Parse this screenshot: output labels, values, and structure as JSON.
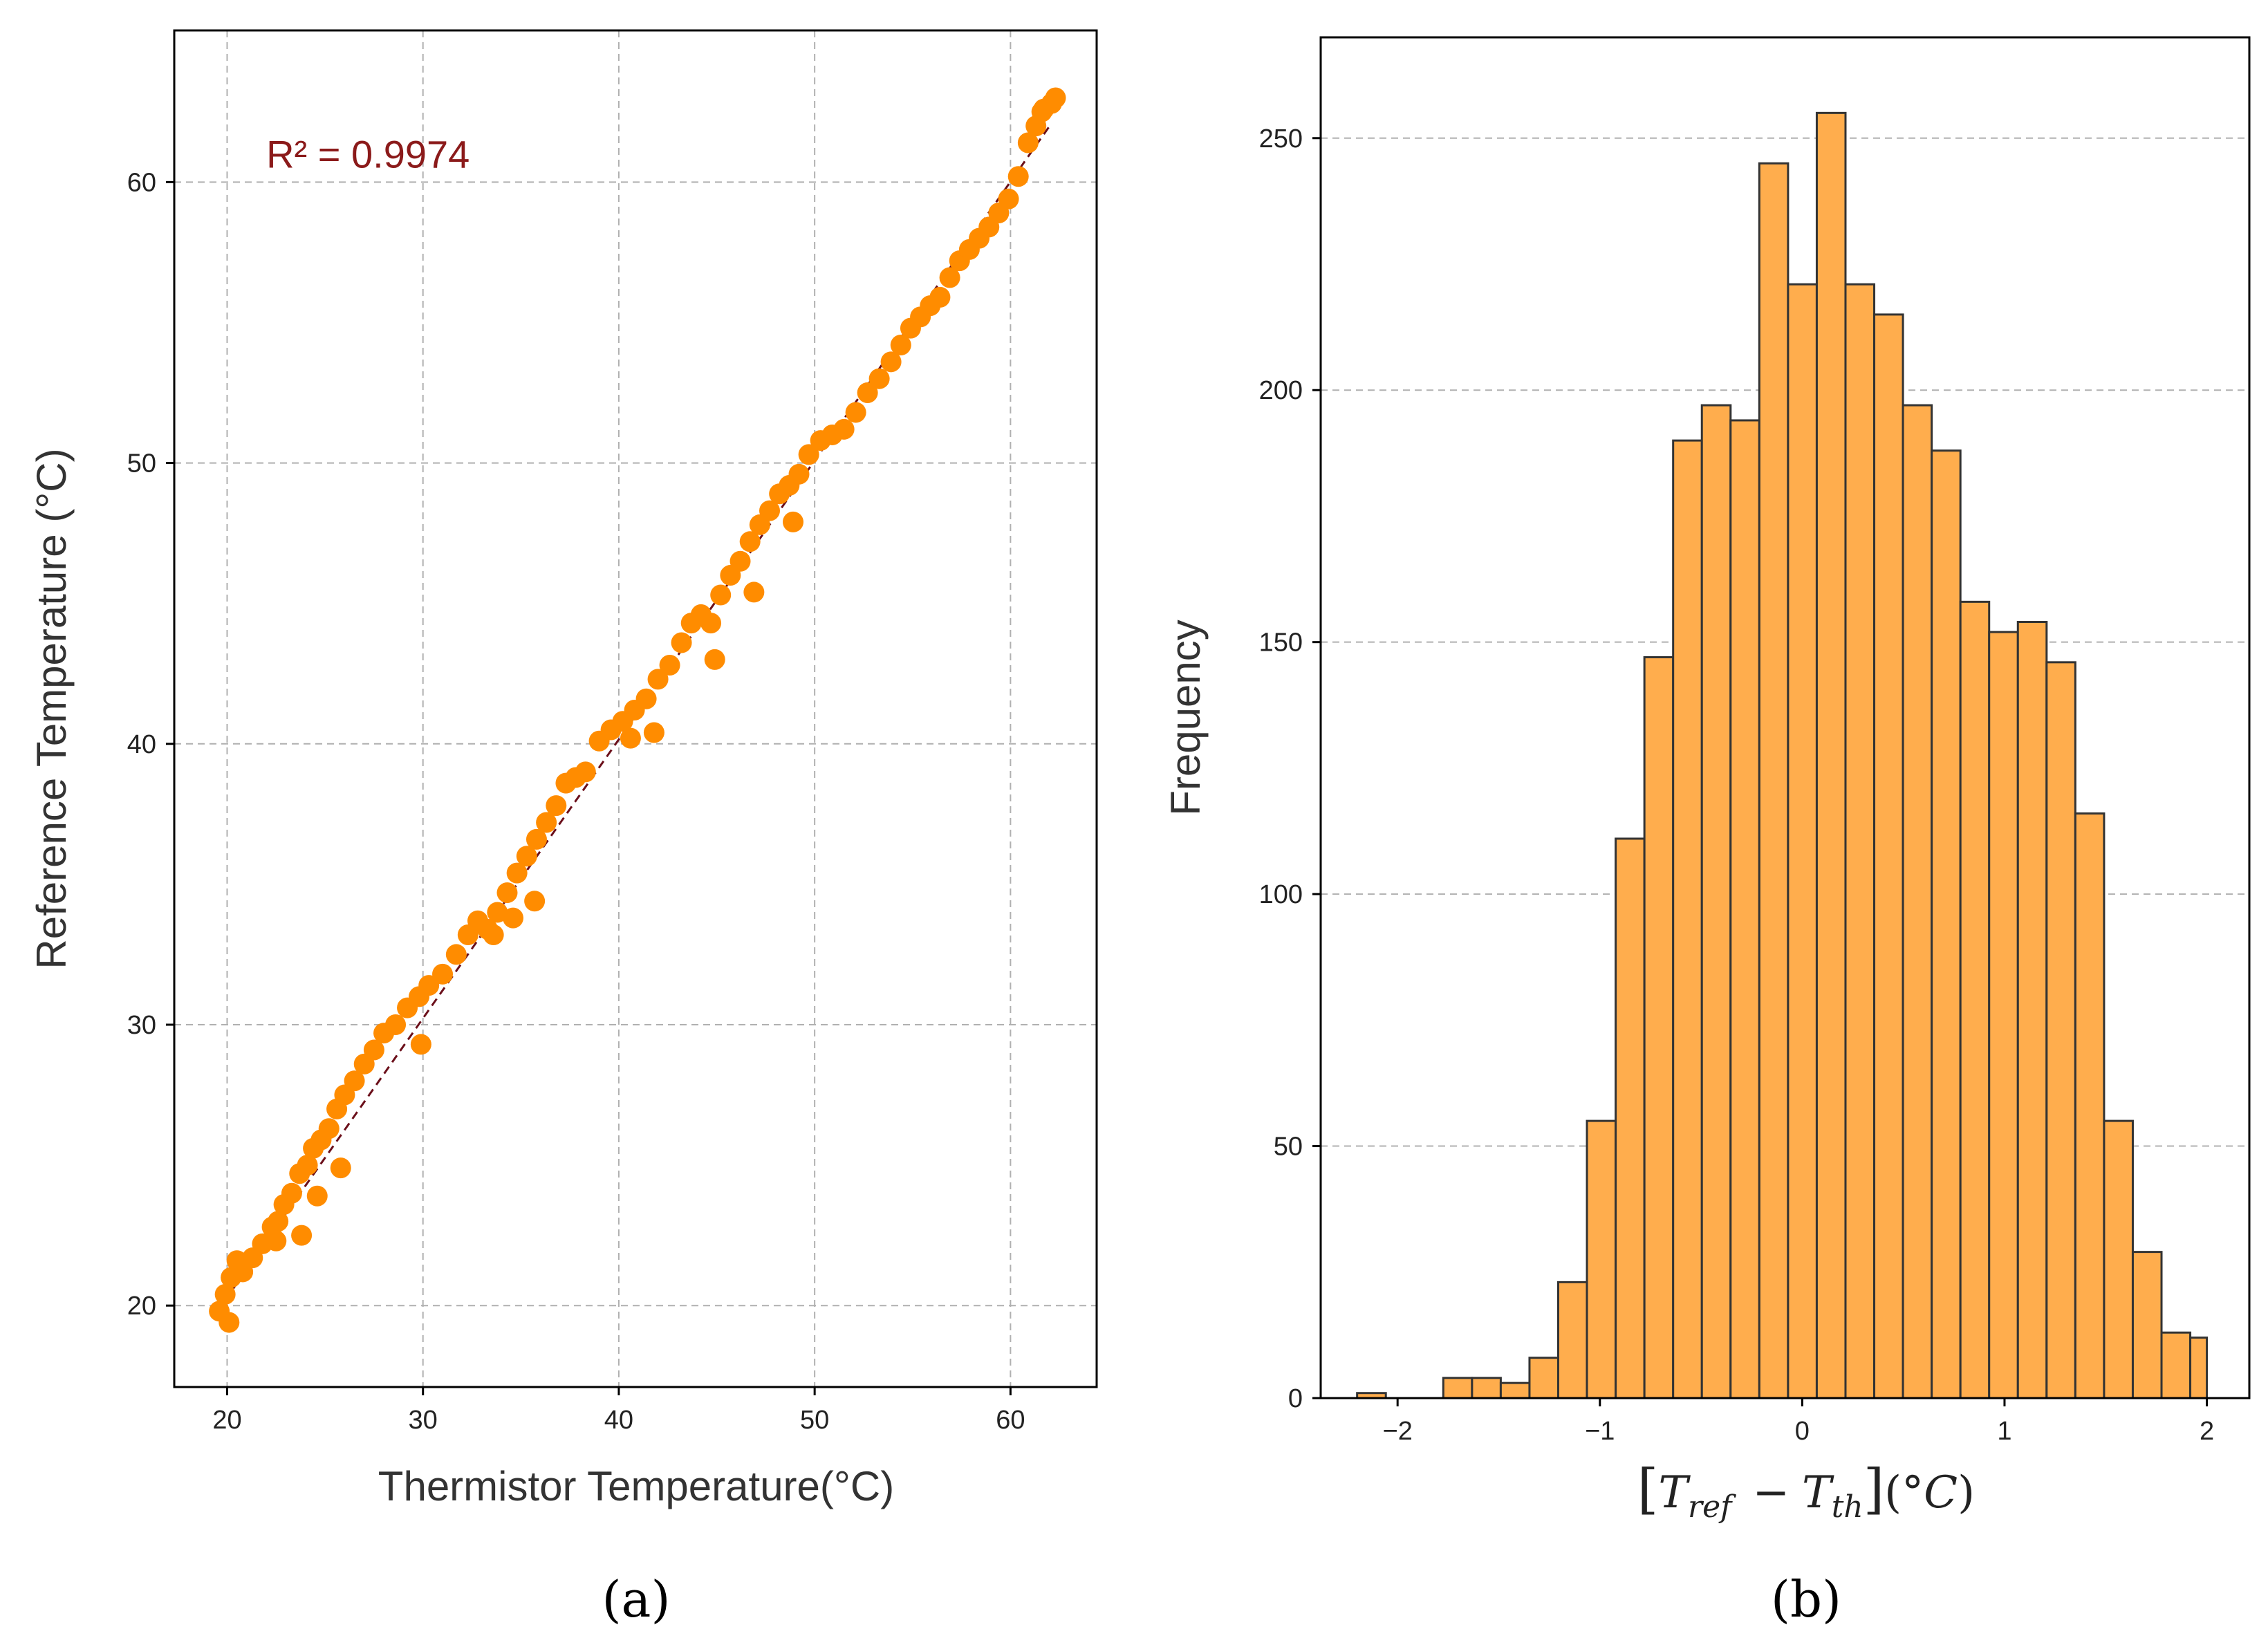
{
  "panels": [
    {
      "panel_label": "(a)"
    },
    {
      "panel_label": "(b)"
    }
  ],
  "colors": {
    "points": "#FF8C00",
    "fit_line": "#6B0F1A",
    "annotation": "#8B1A1A",
    "bars": "#FFAD4D",
    "bar_edge": "#333333",
    "grid": "#b0b0b0"
  },
  "chart_data": [
    {
      "type": "scatter",
      "title": "",
      "xlabel": "Thermistor Temperature(°C)",
      "ylabel": "Reference Temperature (°C)",
      "xlim": [
        17.3,
        64.4
      ],
      "ylim": [
        17.1,
        65.4
      ],
      "xticks": [
        20,
        30,
        40,
        50,
        60
      ],
      "yticks": [
        20,
        30,
        40,
        50,
        60
      ],
      "grid": true,
      "annotation": {
        "text": "R² = 0.9974",
        "x": 22,
        "y": 61
      },
      "fit_line": {
        "x": [
          19.5,
          62
        ],
        "y": [
          19.8,
          62.0
        ]
      },
      "points": {
        "x": [
          19.6,
          19.9,
          20.2,
          20.5,
          20.8,
          21.3,
          21.8,
          22.3,
          22.6,
          22.9,
          23.3,
          23.7,
          24.1,
          24.4,
          24.8,
          25.2,
          25.6,
          26.0,
          26.5,
          27.0,
          27.5,
          28.0,
          28.6,
          29.2,
          29.8,
          30.3,
          31.0,
          31.7,
          32.3,
          32.8,
          33.3,
          33.8,
          34.3,
          34.8,
          35.3,
          35.8,
          36.3,
          36.8,
          37.3,
          37.8,
          38.3,
          39.0,
          39.6,
          40.2,
          40.8,
          41.4,
          42.0,
          42.6,
          43.2,
          43.7,
          44.2,
          44.7,
          45.2,
          45.7,
          46.2,
          46.7,
          47.2,
          47.7,
          48.2,
          48.7,
          49.2,
          49.7,
          50.3,
          50.9,
          51.5,
          52.1,
          52.7,
          53.3,
          53.9,
          54.4,
          54.9,
          55.4,
          55.9,
          56.4,
          56.9,
          57.4,
          57.9,
          58.4,
          58.9,
          59.4,
          59.9,
          60.4,
          60.9,
          61.3,
          61.7,
          62.1,
          20.1,
          22.5,
          23.8,
          24.6,
          25.8,
          29.9,
          33.6,
          34.6,
          35.7,
          40.6,
          41.8,
          44.9,
          46.9,
          48.9,
          61.6,
          62.3
        ],
        "y": [
          19.8,
          20.4,
          21.0,
          21.6,
          21.2,
          21.7,
          22.2,
          22.8,
          23.0,
          23.6,
          24.0,
          24.7,
          25.0,
          25.6,
          25.9,
          26.3,
          27.0,
          27.5,
          28.0,
          28.6,
          29.1,
          29.7,
          30.0,
          30.6,
          31.0,
          31.4,
          31.8,
          32.5,
          33.2,
          33.7,
          33.4,
          34.0,
          34.7,
          35.4,
          36.0,
          36.6,
          37.2,
          37.8,
          38.6,
          38.8,
          39.0,
          40.1,
          40.5,
          40.8,
          41.2,
          41.6,
          42.3,
          42.8,
          43.6,
          44.3,
          44.6,
          44.3,
          45.3,
          46.0,
          46.5,
          47.2,
          47.8,
          48.3,
          48.9,
          49.2,
          49.6,
          50.3,
          50.8,
          51.0,
          51.2,
          51.8,
          52.5,
          53.0,
          53.6,
          54.2,
          54.8,
          55.2,
          55.6,
          55.9,
          56.6,
          57.2,
          57.6,
          58.0,
          58.4,
          58.9,
          59.4,
          60.2,
          61.4,
          62.0,
          62.6,
          62.8,
          19.4,
          22.3,
          22.5,
          23.9,
          24.9,
          29.3,
          33.2,
          33.8,
          34.4,
          40.2,
          40.4,
          43.0,
          45.4,
          47.9,
          62.5,
          63.0
        ]
      }
    },
    {
      "type": "bar",
      "title": "",
      "xlabel": "[Tref − Tth](°C)",
      "ylabel": "Frequency",
      "xlim": [
        -2.38,
        2.21
      ],
      "ylim": [
        0,
        270
      ],
      "xticks": [
        -2,
        -1,
        0,
        1,
        2
      ],
      "xtick_labels": [
        "−2",
        "−1",
        "0",
        "1",
        "2"
      ],
      "yticks": [
        0,
        50,
        100,
        150,
        200,
        250
      ],
      "grid": "y",
      "bin_edges": [
        -2.2,
        -2.058,
        -1.916,
        -1.774,
        -1.632,
        -1.49,
        -1.348,
        -1.206,
        -1.064,
        -0.922,
        -0.78,
        -0.638,
        -0.496,
        -0.354,
        -0.212,
        -0.07,
        0.072,
        0.214,
        0.356,
        0.498,
        0.64,
        0.782,
        0.924,
        1.066,
        1.208,
        1.35,
        1.492,
        1.634,
        1.776,
        1.918,
        2.0
      ],
      "counts": [
        1,
        0,
        0,
        4,
        4,
        3,
        8,
        23,
        55,
        111,
        147,
        190,
        197,
        194,
        245,
        221,
        255,
        221,
        215,
        197,
        188,
        158,
        152,
        154,
        146,
        116,
        55,
        29,
        13,
        12
      ]
    }
  ]
}
